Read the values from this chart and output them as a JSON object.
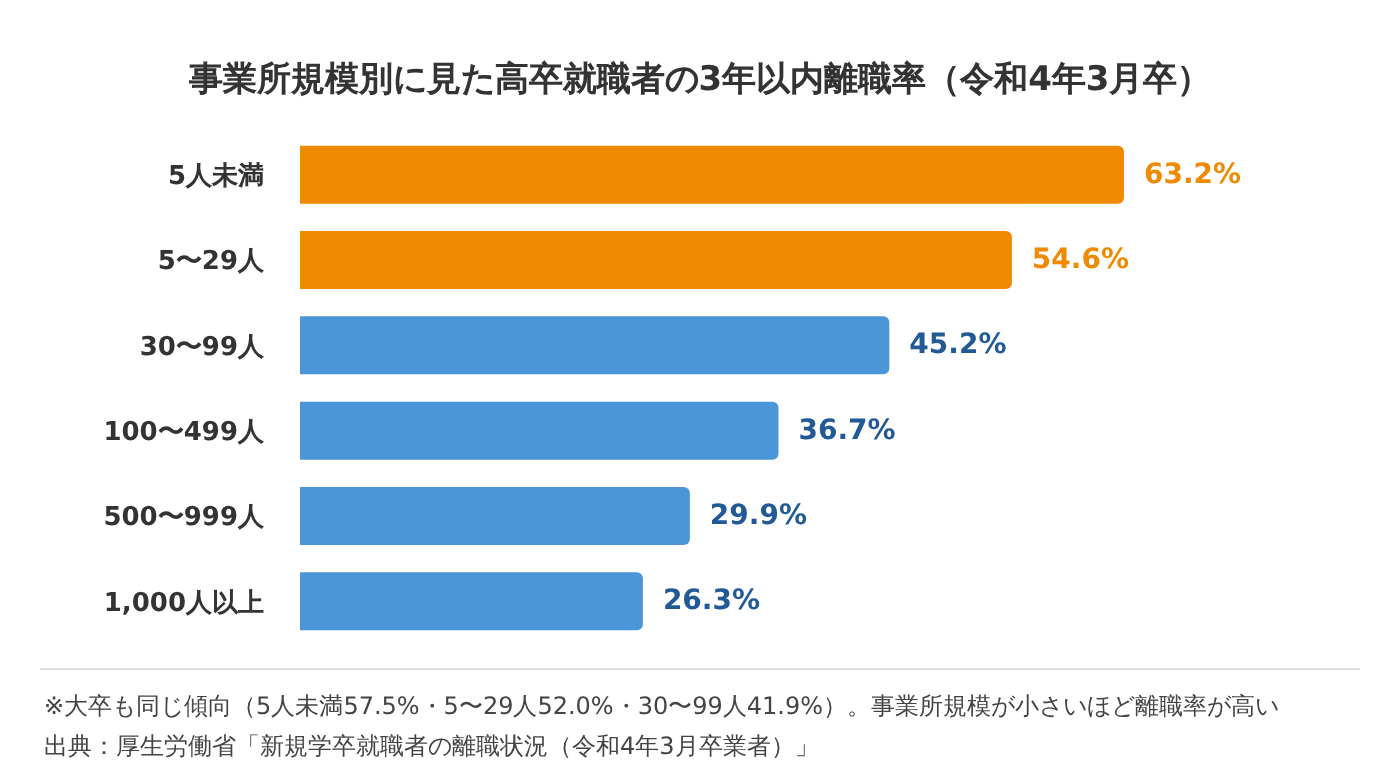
{
  "chart_data": {
    "type": "bar",
    "orientation": "horizontal",
    "title": "事業所規模別に見た高卒就職者の3年以内離職率（令和4年3月卒）",
    "categories": [
      "5人未満",
      "5〜29人",
      "30〜99人",
      "100〜499人",
      "500〜999人",
      "1,000人以上"
    ],
    "values": [
      63.2,
      54.6,
      45.2,
      36.7,
      29.9,
      26.3
    ],
    "value_labels": [
      "63.2%",
      "54.6%",
      "45.2%",
      "36.7%",
      "29.9%",
      "26.3%"
    ],
    "colors": [
      "#f08a00",
      "#f08a00",
      "#4a96d6",
      "#4a96d6",
      "#4a96d6",
      "#4a96d6"
    ],
    "annotations": [
      "※大卒も同じ傾向（5人未満57.5%・5〜29人52.0%・30〜99人41.9%）。事業所規模が小さいほど離職率が高い",
      "出典：厚生労働省「新規学卒就職者の離職状況（令和4年3月卒業者）」"
    ],
    "data_labels": true
  }
}
